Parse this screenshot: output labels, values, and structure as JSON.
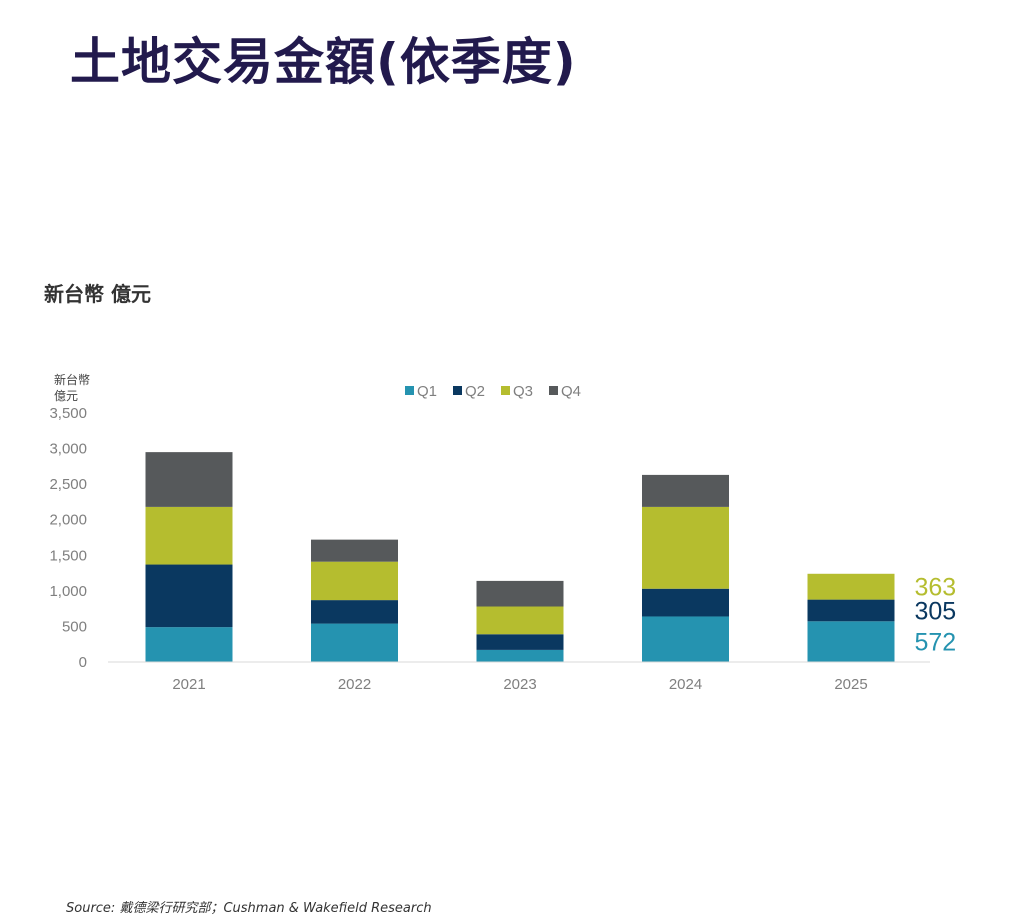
{
  "title": "土地交易金額(依季度)",
  "subtitle": "新台幣 億元",
  "source": "Source: 戴德梁行研究部；Cushman & Wakefield Research",
  "chart_data": {
    "type": "bar",
    "stacked": true,
    "ylabel_lines": [
      "新台幣",
      "億元"
    ],
    "ylim": [
      0,
      3500
    ],
    "yticks": [
      0,
      500,
      1000,
      1500,
      2000,
      2500,
      3000,
      3500
    ],
    "ytick_labels": [
      "0",
      "500",
      "1,000",
      "1,500",
      "2,000",
      "2,500",
      "3,000",
      "3,500"
    ],
    "categories": [
      "2021",
      "2022",
      "2023",
      "2024",
      "2025"
    ],
    "series": [
      {
        "name": "Q1",
        "color": "#2593b0",
        "values": [
          490,
          540,
          170,
          640,
          572
        ]
      },
      {
        "name": "Q2",
        "color": "#0a3860",
        "values": [
          880,
          330,
          220,
          390,
          305
        ]
      },
      {
        "name": "Q3",
        "color": "#b5bd2f",
        "values": [
          810,
          540,
          390,
          1150,
          363
        ]
      },
      {
        "name": "Q4",
        "color": "#56595b",
        "values": [
          770,
          310,
          360,
          450,
          0
        ]
      }
    ],
    "legend_position": "top",
    "annotations": [
      {
        "category": "2025",
        "series": "Q3",
        "text": "363",
        "color": "#b5bd2f"
      },
      {
        "category": "2025",
        "series": "Q2",
        "text": "305",
        "color": "#0a3860"
      },
      {
        "category": "2025",
        "series": "Q1",
        "text": "572",
        "color": "#2593b0"
      }
    ],
    "grid": false
  }
}
